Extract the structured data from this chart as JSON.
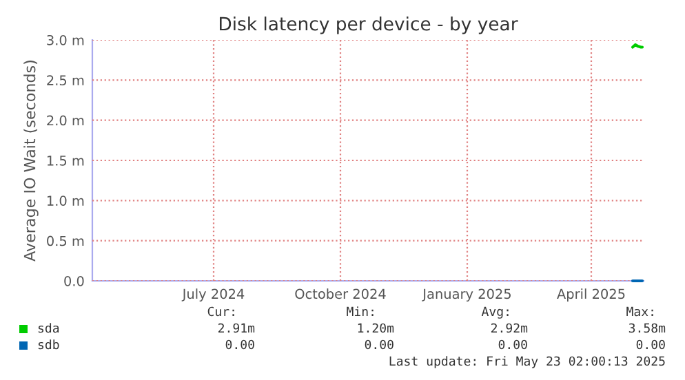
{
  "chart_data": {
    "type": "line",
    "title": "Disk latency per device - by year",
    "ylabel": "Average IO Wait (seconds)",
    "series": [
      {
        "name": "sda",
        "color": "#00cc00",
        "x": [
          "2025-05-15",
          "2025-05-17",
          "2025-05-19",
          "2025-05-21",
          "2025-05-22"
        ],
        "values": [
          2.91,
          2.94,
          2.92,
          2.91,
          2.91
        ]
      },
      {
        "name": "sdb",
        "color": "#0066b3",
        "x": [
          "2025-05-15",
          "2025-05-17",
          "2025-05-19",
          "2025-05-21",
          "2025-05-22"
        ],
        "values": [
          0,
          0,
          0,
          0,
          0
        ]
      }
    ],
    "xlim": [
      "2024-04-18",
      "2025-05-23"
    ],
    "xticks": [
      {
        "value": "2024-07-15",
        "label": "July 2024"
      },
      {
        "value": "2024-10-15",
        "label": "October 2024"
      },
      {
        "value": "2025-01-15",
        "label": "January 2025"
      },
      {
        "value": "2025-04-15",
        "label": "April 2025"
      }
    ],
    "ylim": [
      0,
      3
    ],
    "yticks": [
      {
        "value": 0,
        "label": "0.0"
      },
      {
        "value": 0.5,
        "label": "0.5 m"
      },
      {
        "value": 1,
        "label": "1.0 m"
      },
      {
        "value": 1.5,
        "label": "1.5 m"
      },
      {
        "value": 2,
        "label": "2.0 m"
      },
      {
        "value": 2.5,
        "label": "2.5 m"
      },
      {
        "value": 3,
        "label": "3.0 m"
      }
    ],
    "grid": true,
    "legend": "bottom left",
    "marker": "none",
    "line_style": "solid",
    "annotations": [
      "Cur:",
      "Min:",
      "Avg:",
      "Max:",
      "2.91m",
      "1.20m",
      "2.92m",
      "3.58m",
      "0.00",
      "0.00",
      "0.00",
      "0.00",
      "Last update: Fri May 23 02:00:13 2025"
    ]
  }
}
